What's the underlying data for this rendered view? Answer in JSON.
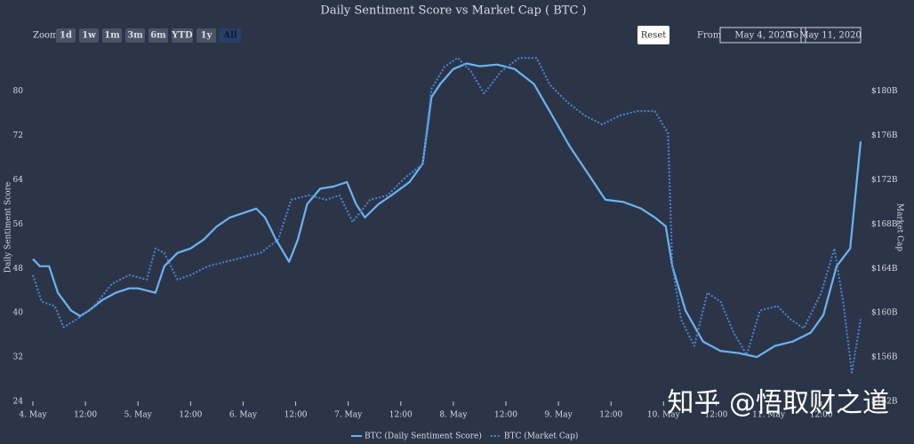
{
  "chart_data": {
    "type": "line",
    "title": "Daily Sentiment Score vs Market Cap ( BTC )",
    "y_label": "Daily Sentiment Score",
    "y2_label": "Market Cap",
    "xlim": [
      0,
      189
    ],
    "xticks": [
      {
        "value": 0,
        "label": "4. May"
      },
      {
        "value": 12,
        "label": "12:00"
      },
      {
        "value": 24,
        "label": "5. May"
      },
      {
        "value": 36,
        "label": "12:00"
      },
      {
        "value": 48,
        "label": "6. May"
      },
      {
        "value": 60,
        "label": "12:00"
      },
      {
        "value": 72,
        "label": "7. May"
      },
      {
        "value": 84,
        "label": "12:00"
      },
      {
        "value": 96,
        "label": "8. May"
      },
      {
        "value": 108,
        "label": "12:00"
      },
      {
        "value": 120,
        "label": "9. May"
      },
      {
        "value": 132,
        "label": "12:00"
      },
      {
        "value": 144,
        "label": "10. May"
      },
      {
        "value": 156,
        "label": "12:00"
      },
      {
        "value": 168,
        "label": "11. May"
      },
      {
        "value": 180,
        "label": "12:00"
      }
    ],
    "ylim": [
      24,
      87
    ],
    "yticks": [
      24,
      32,
      40,
      48,
      56,
      64,
      72,
      80
    ],
    "y2lim": [
      152,
      183.5
    ],
    "y2ticks": [
      {
        "value": 152,
        "label": "$152B"
      },
      {
        "value": 156,
        "label": "$156B"
      },
      {
        "value": 160,
        "label": "$160B"
      },
      {
        "value": 164,
        "label": "$164B"
      },
      {
        "value": 168,
        "label": "$168B"
      },
      {
        "value": 172,
        "label": "$172B"
      },
      {
        "value": 176,
        "label": "$176B"
      },
      {
        "value": 180,
        "label": "$180B"
      }
    ],
    "legend": "bottom",
    "series": [
      {
        "name": "BTC (Daily Sentiment Score)",
        "color": "#6cb4f0",
        "dash": false,
        "x": [
          0,
          1.6,
          3.7,
          5.7,
          8.7,
          10.8,
          12.8,
          15.9,
          18.9,
          22,
          24,
          28,
          30,
          33,
          36,
          39,
          42,
          45,
          48,
          51,
          53,
          55.5,
          58.5,
          60.5,
          62.6,
          65.6,
          68.7,
          71.7,
          73.8,
          75.8,
          78.9,
          81.9,
          86,
          89,
          91,
          93,
          96,
          99,
          102,
          106,
          110,
          114.4,
          118.5,
          122.6,
          126.6,
          130.7,
          134.8,
          138.9,
          142,
          144.5,
          146,
          149,
          153,
          157,
          161.2,
          165.3,
          169.4,
          173.5,
          177.6,
          180.5,
          183.5,
          186.6,
          187.6,
          189
        ],
        "values": [
          49.7,
          48.4,
          48.4,
          43.6,
          40.4,
          39.4,
          40.4,
          42.3,
          43.6,
          44.4,
          44.4,
          43.6,
          48.4,
          50.8,
          51.6,
          53.2,
          55.6,
          57.2,
          58,
          58.8,
          57.2,
          53.2,
          49.2,
          53.2,
          59.6,
          62.4,
          62.8,
          63.6,
          59.6,
          57.2,
          59.6,
          61.2,
          63.6,
          66.9,
          78.9,
          81.3,
          84,
          85,
          84.5,
          84.8,
          84,
          81.3,
          75.7,
          70,
          65.3,
          60.4,
          60,
          58.8,
          57.2,
          55.6,
          48.4,
          40.4,
          34.8,
          33.1,
          32.7,
          32,
          34,
          34.8,
          36.4,
          39.6,
          48.4,
          51.6,
          59.6,
          70.9
        ]
      },
      {
        "name": "BTC (Market Cap)",
        "color": "#4a86d4",
        "dash": true,
        "axis": "y2",
        "x": [
          0,
          2,
          5,
          7,
          10,
          14,
          18,
          22,
          26,
          28,
          30,
          33,
          36,
          40,
          44,
          48,
          52,
          56,
          59,
          63,
          67,
          70,
          73,
          77,
          81,
          85,
          89,
          91,
          94,
          97,
          100,
          103,
          107,
          111,
          115,
          118,
          122,
          126,
          130,
          134,
          138,
          142,
          145,
          146,
          148,
          151,
          154,
          157,
          160,
          163,
          166,
          170,
          173,
          176,
          180,
          183,
          185,
          187,
          189
        ],
        "values": [
          163.4,
          161,
          160.6,
          158.7,
          159.4,
          160.6,
          162.6,
          163.4,
          163,
          165.8,
          165.4,
          163,
          163.4,
          164.2,
          164.6,
          165,
          165.4,
          166.6,
          170.2,
          170.6,
          170.2,
          170.6,
          168.2,
          170.2,
          170.6,
          172.2,
          173.4,
          180.2,
          182.2,
          183,
          181.8,
          179.8,
          181.8,
          183,
          183,
          180.6,
          179,
          177.8,
          177,
          177.8,
          178.2,
          178.2,
          176.2,
          164.2,
          159.4,
          157,
          161.8,
          161,
          158.2,
          156.2,
          160.2,
          160.6,
          159.4,
          158.6,
          161.8,
          165.8,
          161,
          154.6,
          159.4
        ]
      }
    ]
  },
  "controls": {
    "zoom_label": "Zoom",
    "buttons": [
      "1d",
      "1w",
      "1m",
      "3m",
      "6m",
      "YTD",
      "1y",
      "All"
    ],
    "selected": "All",
    "reset": "Reset",
    "from_label": "From",
    "from": "May 4, 2020",
    "to_label": "To",
    "to": "May 11, 2020"
  },
  "watermark": "知乎 @悟取财之道"
}
